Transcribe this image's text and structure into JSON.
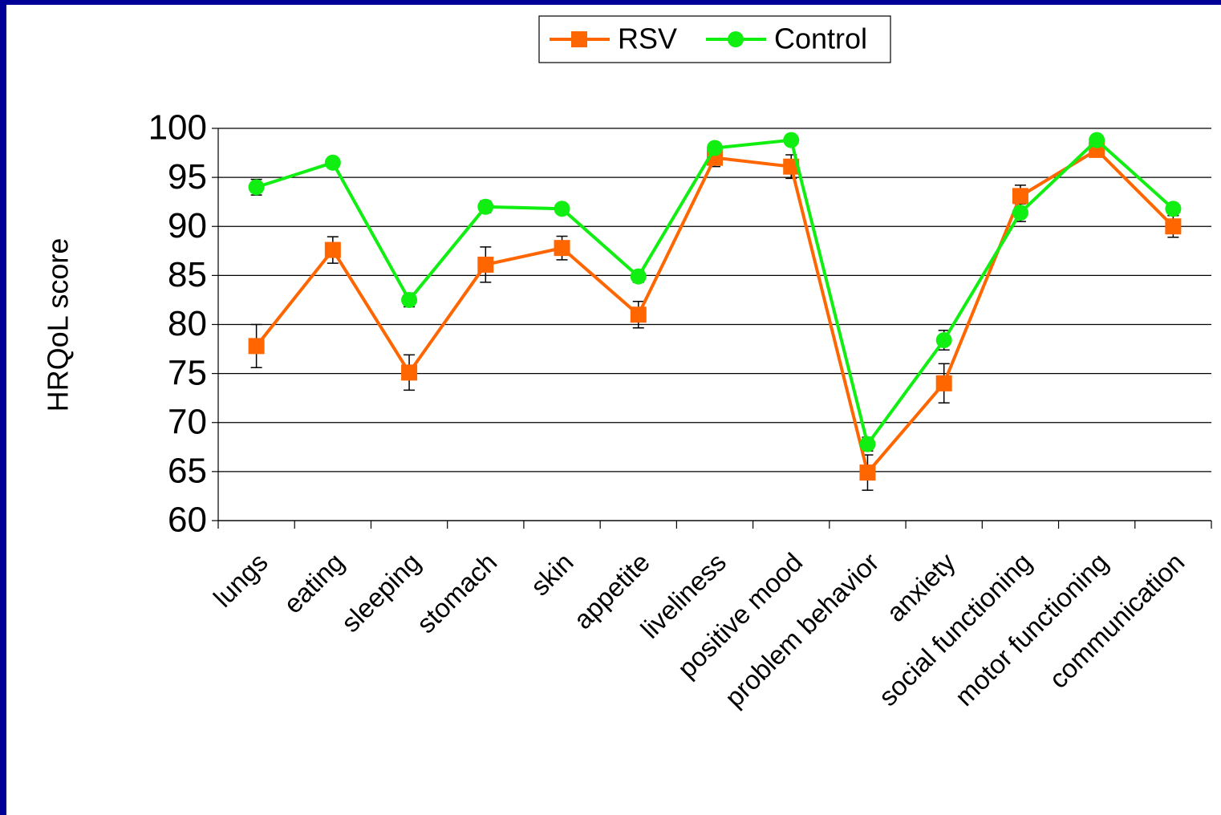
{
  "chart_data": {
    "type": "line",
    "ylabel": "HRQoL score",
    "categories": [
      "lungs",
      "eating",
      "sleeping",
      "stomach",
      "skin",
      "appetite",
      "liveliness",
      "positive mood",
      "problem behavior",
      "anxiety",
      "social functioning",
      "motor functioning",
      "communication"
    ],
    "series": [
      {
        "name": "RSV",
        "color": "#ff6600",
        "marker": "square",
        "values": [
          77.8,
          87.6,
          75.1,
          86.1,
          87.8,
          81.0,
          97.0,
          96.1,
          64.9,
          74.0,
          93.1,
          97.8,
          90.0
        ],
        "errors": [
          2.2,
          1.35,
          1.8,
          1.8,
          1.2,
          1.35,
          0.9,
          1.2,
          1.8,
          2.0,
          1.1,
          0.6,
          1.1
        ]
      },
      {
        "name": "Control",
        "color": "#11ee11",
        "marker": "circle",
        "values": [
          94.0,
          96.5,
          82.5,
          92.0,
          91.8,
          84.9,
          98.0,
          98.8,
          67.8,
          78.4,
          91.4,
          98.8,
          91.8
        ],
        "errors": [
          0.8,
          0.5,
          0.7,
          0.6,
          0.5,
          0.6,
          0.5,
          0.5,
          0.7,
          1.0,
          0.9,
          0.5,
          0.5
        ]
      }
    ],
    "ylim": [
      60,
      100
    ],
    "yticks": [
      60,
      65,
      70,
      75,
      80,
      85,
      90,
      95,
      100
    ],
    "grid": true,
    "legend": "top"
  }
}
